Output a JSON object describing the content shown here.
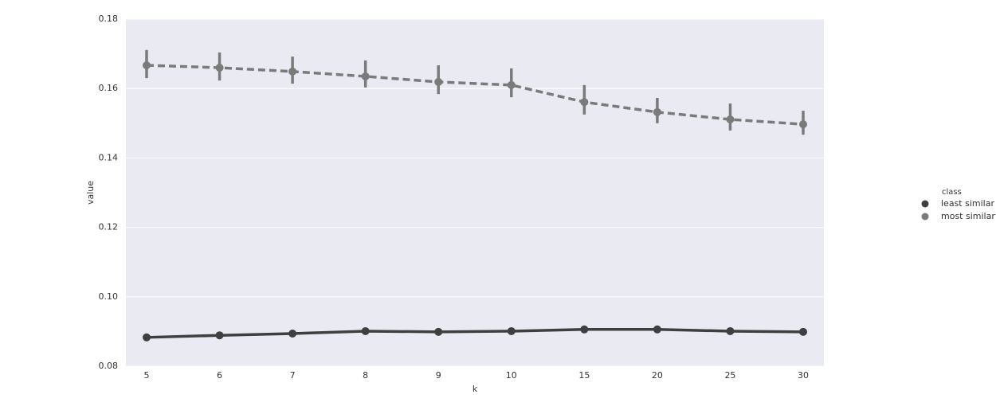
{
  "chart_data": {
    "type": "pointplot",
    "x_label": "k",
    "y_label": "value",
    "categories": [
      "5",
      "6",
      "7",
      "8",
      "9",
      "10",
      "15",
      "20",
      "25",
      "30"
    ],
    "ylim": [
      0.08,
      0.18
    ],
    "yticks": [
      0.08,
      {
        "value": 0.1,
        "label": "0.10"
      },
      0.12,
      0.14,
      0.16,
      0.18
    ],
    "grid": true,
    "legend_title": "class",
    "legend_position": "right",
    "series": [
      {
        "name": "least similar",
        "color": "#3f3f3f",
        "linestyle": "solid",
        "values": [
          0.0883,
          0.0889,
          0.0894,
          0.0901,
          0.0899,
          0.0901,
          0.0906,
          0.0906,
          0.0901,
          0.0899
        ],
        "ci_low": [
          0.0879,
          0.0886,
          0.0891,
          0.0898,
          0.0896,
          0.0898,
          0.0903,
          0.0903,
          0.0898,
          0.0896
        ],
        "ci_high": [
          0.0887,
          0.0892,
          0.0897,
          0.0904,
          0.0902,
          0.0904,
          0.0909,
          0.0909,
          0.0904,
          0.0902
        ]
      },
      {
        "name": "most similar",
        "color": "#7a7a7a",
        "linestyle": "dashed",
        "values": [
          0.1667,
          0.166,
          0.1649,
          0.1635,
          0.1619,
          0.161,
          0.1561,
          0.1532,
          0.1511,
          0.1497
        ],
        "ci_low": [
          0.163,
          0.1623,
          0.1614,
          0.1603,
          0.1584,
          0.1575,
          0.1525,
          0.15,
          0.1479,
          0.1467
        ],
        "ci_high": [
          0.1711,
          0.1704,
          0.1692,
          0.1681,
          0.1667,
          0.1658,
          0.161,
          0.1573,
          0.1557,
          0.1536
        ]
      }
    ]
  }
}
